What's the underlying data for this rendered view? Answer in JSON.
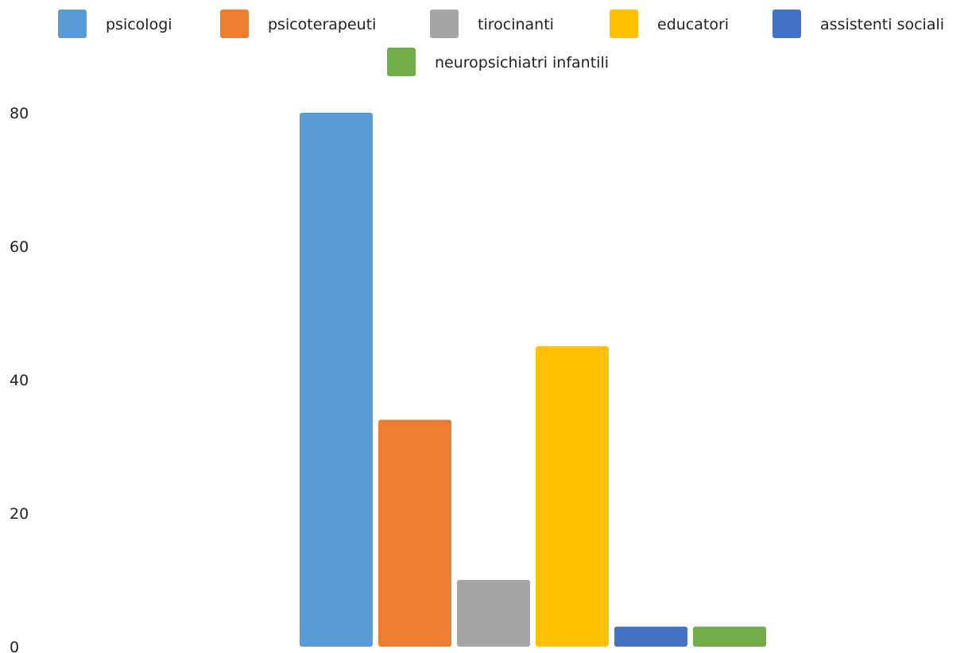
{
  "chart_data": {
    "type": "bar",
    "title": "",
    "xlabel": "",
    "ylabel": "",
    "ylim": [
      0,
      80
    ],
    "yticks": [
      "0",
      "20",
      "40",
      "60",
      "80"
    ],
    "grid": false,
    "legend_position": "top",
    "series": [
      {
        "name": "psicologi",
        "value": 80,
        "color": "#5B9BD5"
      },
      {
        "name": "psicoterapeuti",
        "value": 34,
        "color": "#ED7D31"
      },
      {
        "name": "tirocinanti",
        "value": 10,
        "color": "#A5A5A5"
      },
      {
        "name": "educatori",
        "value": 45,
        "color": "#FFC000"
      },
      {
        "name": "assistenti sociali",
        "value": 3,
        "color": "#4472C4"
      },
      {
        "name": "neuropsichiatri infantili",
        "value": 3,
        "color": "#70AD47"
      }
    ]
  }
}
